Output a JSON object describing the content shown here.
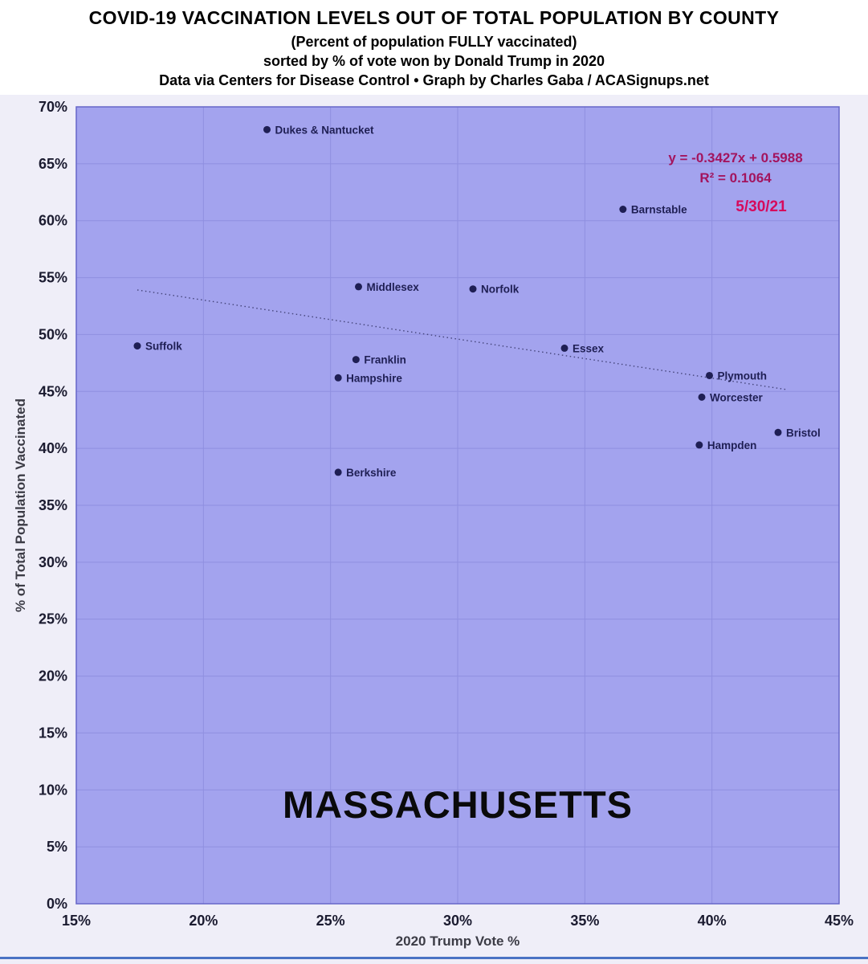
{
  "header": {
    "title": "COVID-19 VACCINATION LEVELS OUT OF TOTAL POPULATION BY COUNTY",
    "subtitle": "(Percent of population FULLY vaccinated)",
    "sort_note": "sorted by % of vote won by Donald Trump in 2020",
    "credit": "Data via Centers for Disease Control • Graph by Charles Gaba / ACASignups.net"
  },
  "chart_data": {
    "type": "scatter",
    "title": "COVID-19 VACCINATION LEVELS OUT OF TOTAL POPULATION BY COUNTY",
    "xlabel": "2020 Trump Vote %",
    "ylabel": "% of Total Population Vaccinated",
    "xlim": [
      15,
      45
    ],
    "ylim": [
      0,
      70
    ],
    "x_ticks": [
      15,
      20,
      25,
      30,
      35,
      40,
      45
    ],
    "y_ticks": [
      0,
      5,
      10,
      15,
      20,
      25,
      30,
      35,
      40,
      45,
      50,
      55,
      60,
      65,
      70
    ],
    "tick_suffix": "%",
    "grid": true,
    "points": [
      {
        "county": "Dukes & Nantucket",
        "trump_vote_pct": 22.5,
        "vaccinated_pct": 68.0
      },
      {
        "county": "Barnstable",
        "trump_vote_pct": 36.5,
        "vaccinated_pct": 61.0
      },
      {
        "county": "Middlesex",
        "trump_vote_pct": 26.1,
        "vaccinated_pct": 54.2
      },
      {
        "county": "Norfolk",
        "trump_vote_pct": 30.6,
        "vaccinated_pct": 54.0
      },
      {
        "county": "Suffolk",
        "trump_vote_pct": 17.4,
        "vaccinated_pct": 49.0
      },
      {
        "county": "Essex",
        "trump_vote_pct": 34.2,
        "vaccinated_pct": 48.8
      },
      {
        "county": "Franklin",
        "trump_vote_pct": 26.0,
        "vaccinated_pct": 47.8
      },
      {
        "county": "Hampshire",
        "trump_vote_pct": 25.3,
        "vaccinated_pct": 46.2
      },
      {
        "county": "Plymouth",
        "trump_vote_pct": 39.9,
        "vaccinated_pct": 46.4
      },
      {
        "county": "Worcester",
        "trump_vote_pct": 39.6,
        "vaccinated_pct": 44.5
      },
      {
        "county": "Bristol",
        "trump_vote_pct": 42.6,
        "vaccinated_pct": 41.4
      },
      {
        "county": "Hampden",
        "trump_vote_pct": 39.5,
        "vaccinated_pct": 40.3
      },
      {
        "county": "Berkshire",
        "trump_vote_pct": 25.3,
        "vaccinated_pct": 37.9
      }
    ],
    "trendline": {
      "equation_label": "y = -0.3427x + 0.5988",
      "r_squared_label": "R² = 0.1064",
      "slope": -0.3427,
      "intercept": 0.5988,
      "x_start": 17.4,
      "x_end": 42.9
    },
    "annotations": {
      "date": "5/30/21",
      "state": "MASSACHUSETTS"
    },
    "colors": {
      "plot_bg": "#a3a3ee",
      "grid": "#8f8fe0",
      "border": "#6666c8",
      "point": "#1f1f54",
      "tick": "#1b1b30",
      "trendline": "#44447a",
      "equation": "#a3145e",
      "date": "#d6095c",
      "axis_title": "#3c3c46",
      "footer_rule": "#4a72c4"
    }
  }
}
